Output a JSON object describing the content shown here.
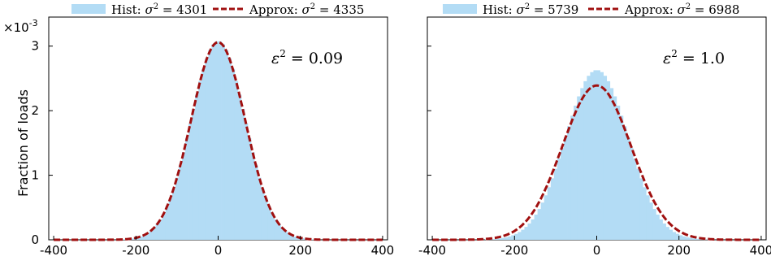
{
  "figure": {
    "ylabel": "Fraction of loads",
    "y_multiplier": {
      "base": "×10",
      "exponent": "-3"
    }
  },
  "chart_data": [
    {
      "type": "area",
      "x_range": [
        -400,
        400
      ],
      "ylim": [
        0,
        3.45
      ],
      "y_unit": "×10^-3",
      "x_ticks": [
        -400,
        -200,
        0,
        200,
        400
      ],
      "y_ticks": [
        0,
        1,
        2,
        3
      ],
      "grid": false,
      "legend_position": "top",
      "annotation": {
        "symbol": "ε",
        "exponent": "2",
        "rest": " = 0.09"
      },
      "series": [
        {
          "name": "Hist",
          "kind": "histogram",
          "sigma2": 4301,
          "label_prefix": "Hist: ",
          "label_value": " = 4301",
          "color": "#b3dcf5",
          "mean": 0,
          "peak": 3.08
        },
        {
          "name": "Approx",
          "kind": "dashed-curve",
          "sigma2": 4335,
          "label_prefix": "Approx: ",
          "label_value": " = 4335",
          "color": "#a01010",
          "mean": 0,
          "peak": 3.06
        }
      ]
    },
    {
      "type": "area",
      "x_range": [
        -400,
        400
      ],
      "ylim": [
        0,
        3.45
      ],
      "y_unit": "×10^-3",
      "x_ticks": [
        -400,
        -200,
        0,
        200,
        400
      ],
      "y_ticks": [
        0,
        1,
        2,
        3
      ],
      "grid": false,
      "legend_position": "top",
      "annotation": {
        "symbol": "ε",
        "exponent": "2",
        "rest": " = 1.0"
      },
      "series": [
        {
          "name": "Hist",
          "kind": "histogram",
          "sigma2": 5739,
          "label_prefix": "Hist: ",
          "label_value": " = 5739",
          "color": "#b3dcf5",
          "mean": 0,
          "peak": 2.63
        },
        {
          "name": "Approx",
          "kind": "dashed-curve",
          "sigma2": 6988,
          "label_prefix": "Approx: ",
          "label_value": " = 6988",
          "color": "#a01010",
          "mean": 0,
          "peak": 2.39
        }
      ]
    }
  ]
}
